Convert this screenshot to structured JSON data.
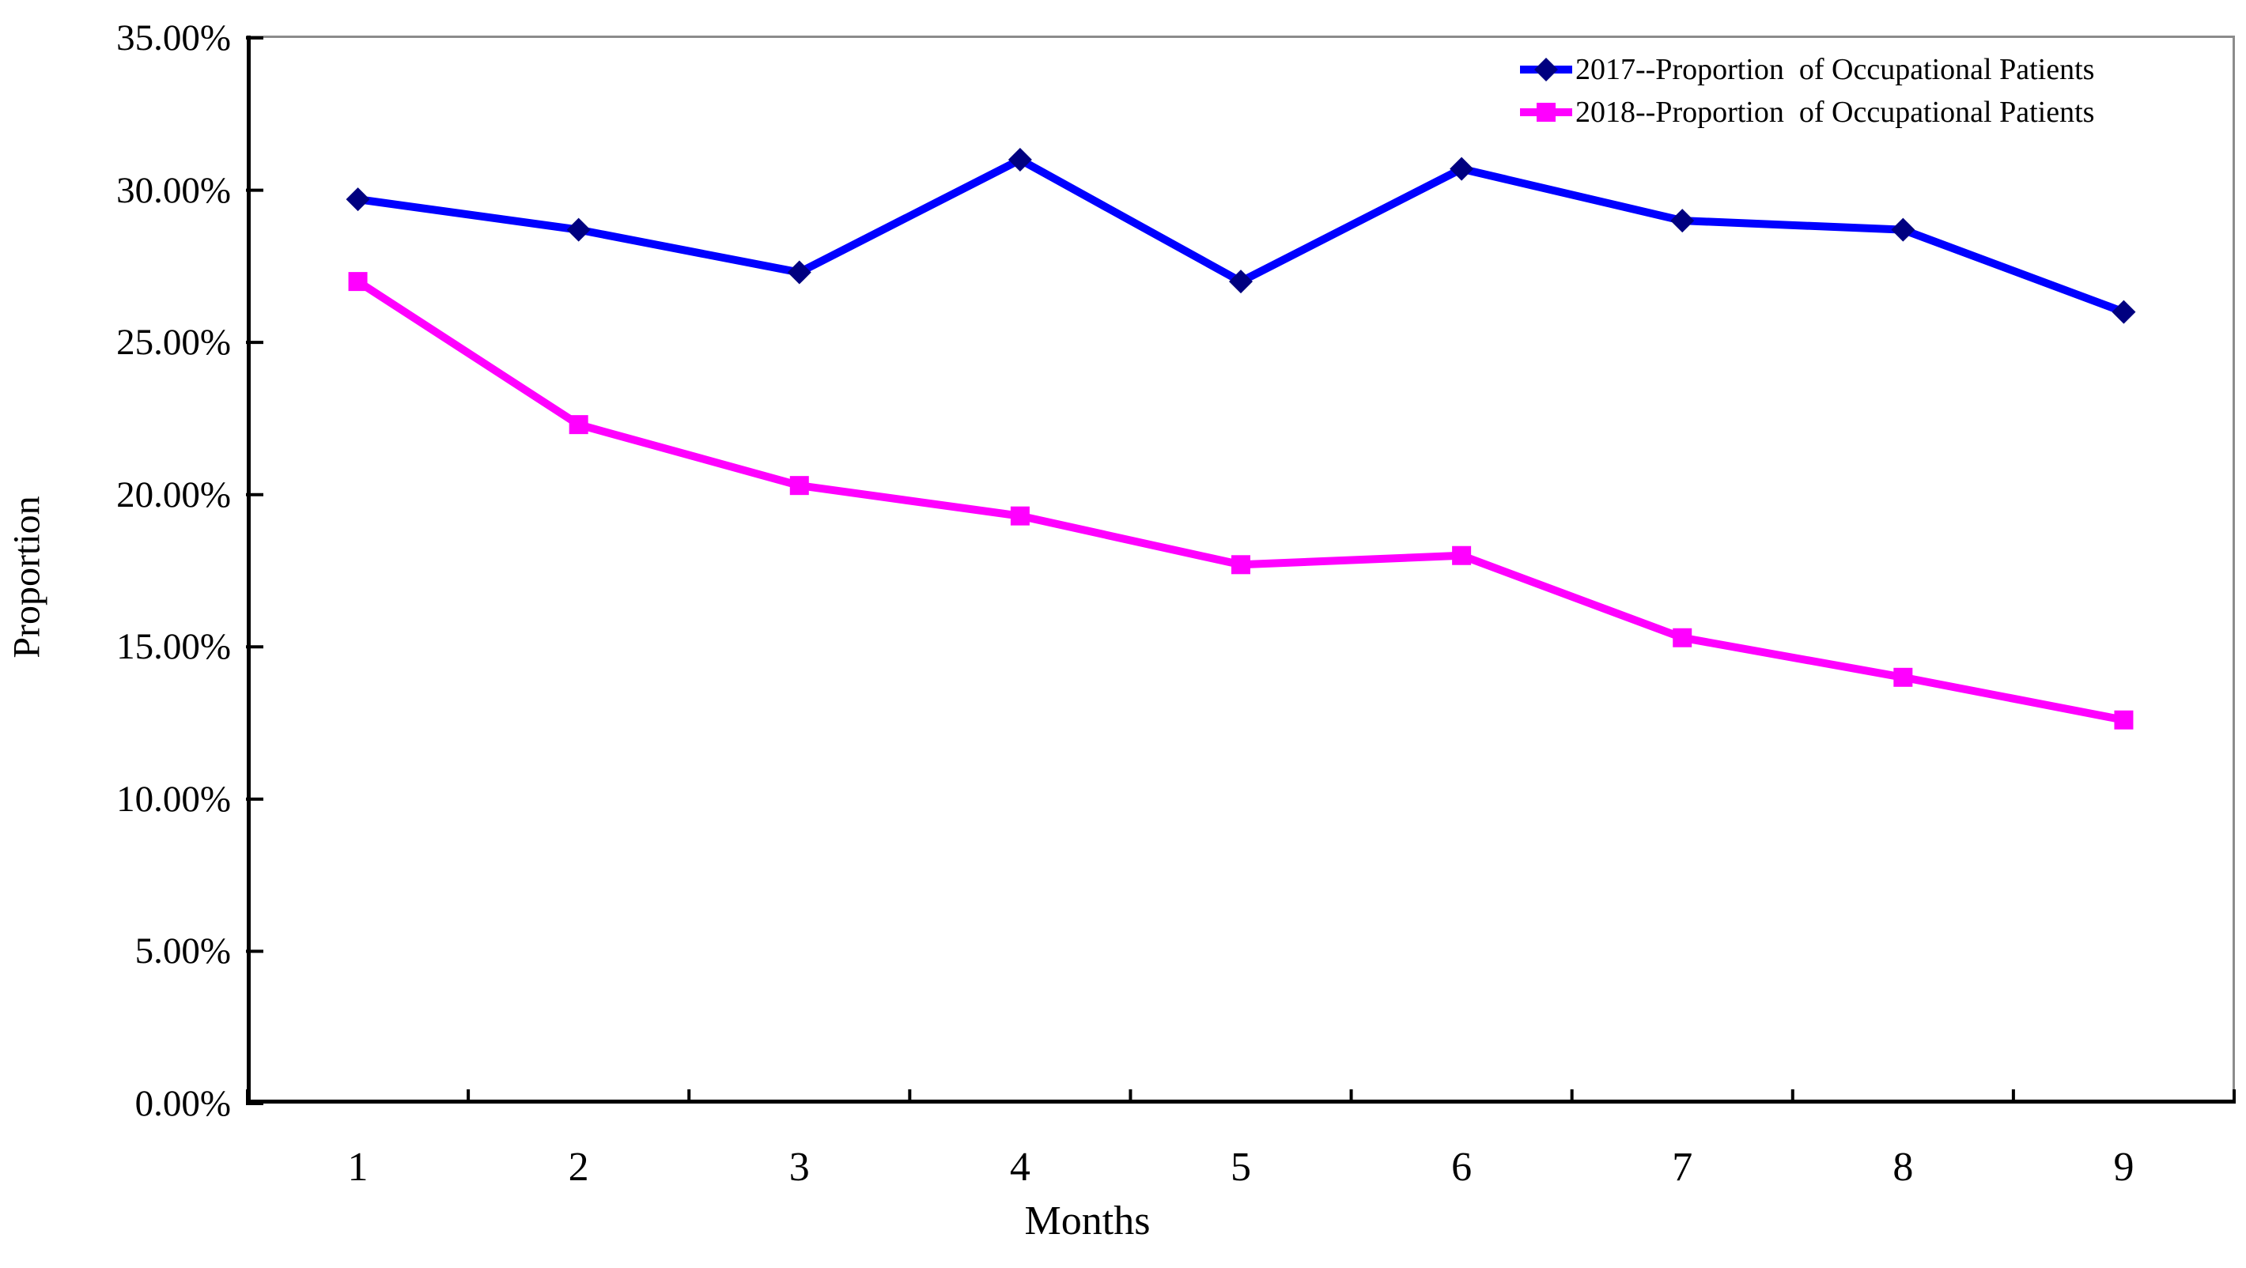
{
  "figure": {
    "ylabel": "Proportion",
    "xlabel": "Months",
    "background": "#ffffff"
  },
  "axes": {
    "y_tick_labels": [
      "0.00%",
      "5.00%",
      "10.00%",
      "15.00%",
      "20.00%",
      "25.00%",
      "30.00%",
      "35.00%"
    ],
    "x_tick_labels": [
      "1",
      "2",
      "3",
      "4",
      "5",
      "6",
      "7",
      "8",
      "9"
    ],
    "axis_color": "#000000",
    "border_color": "#8c8c8c"
  },
  "chart_data": {
    "type": "line",
    "title": "",
    "xlabel": "Months",
    "ylabel": "Proportion",
    "x": [
      1,
      2,
      3,
      4,
      5,
      6,
      7,
      8,
      9
    ],
    "ylim": [
      0,
      35
    ],
    "y_tick_step": 5,
    "y_tick_format": "0.00%",
    "grid": false,
    "legend_position": "top-right",
    "series": [
      {
        "name": "2017--Proportion  of Occupational Patients",
        "color": "#0000ff",
        "marker": "diamond",
        "marker_color": "#000080",
        "values": [
          29.7,
          28.7,
          27.3,
          31.0,
          27.0,
          30.7,
          29.0,
          28.7,
          26.0
        ]
      },
      {
        "name": "2018--Proportion  of Occupational Patients",
        "color": "#ff00ff",
        "marker": "square",
        "marker_color": "#ff00ff",
        "values": [
          27.0,
          22.3,
          20.3,
          19.3,
          17.7,
          18.0,
          15.3,
          14.0,
          12.6
        ]
      }
    ]
  }
}
